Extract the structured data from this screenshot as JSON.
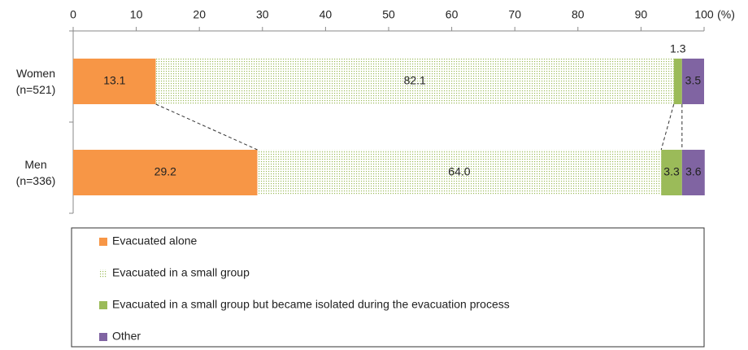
{
  "chart_data": {
    "type": "stacked-hbar",
    "x_label": "(%)",
    "categories": [
      "Women\n(n=521)",
      "Men\n(n=336)"
    ],
    "series": [
      {
        "name": "Evacuated alone",
        "color": "#f79646",
        "values": [
          13.1,
          29.2
        ]
      },
      {
        "name": "Evacuated in a small group",
        "color": "#9bbb59",
        "pattern": "dots",
        "values": [
          82.1,
          64.0
        ],
        "value_labels": [
          "82.1",
          "64.0"
        ]
      },
      {
        "name": "Evacuated in a small group but became isolated during the evacuation process",
        "color": "#9bbb59",
        "values": [
          1.3,
          3.3
        ]
      },
      {
        "name": "Other",
        "color": "#8064a2",
        "values": [
          3.5,
          3.6
        ]
      }
    ],
    "xlim": [
      0,
      100
    ],
    "xticks": [
      0,
      10,
      20,
      30,
      40,
      50,
      60,
      70,
      80,
      90,
      100
    ]
  }
}
